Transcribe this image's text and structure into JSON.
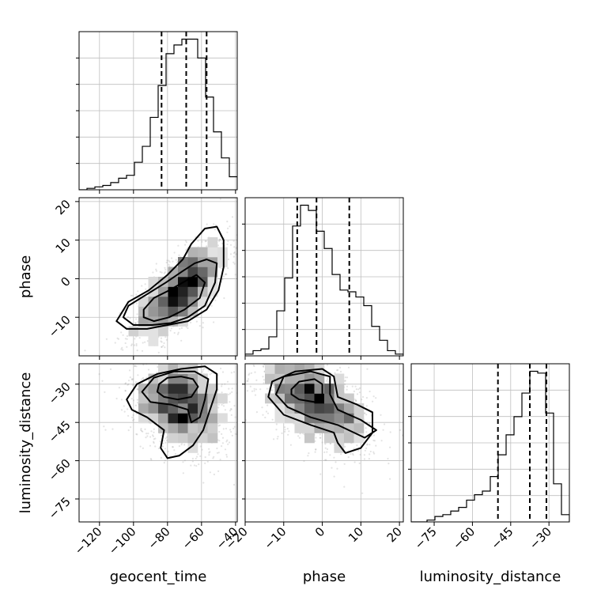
{
  "chart_data": {
    "type": "corner",
    "parameters": [
      "geocent_time",
      "phase",
      "luminosity_distance"
    ],
    "axis_labels": {
      "x": [
        "geocent_time",
        "phase",
        "luminosity_distance"
      ],
      "y": [
        "phase",
        "luminosity_distance"
      ]
    },
    "ranges": {
      "geocent_time": [
        -132,
        -39
      ],
      "phase": [
        -20,
        21
      ],
      "luminosity_distance": [
        -84,
        -22
      ]
    },
    "ticks": {
      "geocent_time": [
        -120,
        -100,
        -80,
        -60,
        -40
      ],
      "phase": [
        -20,
        -10,
        0,
        10,
        20
      ],
      "luminosity_distance": [
        -75,
        -60,
        -45,
        -30
      ]
    },
    "tick_labels": {
      "geocent_time": [
        "−120",
        "−100",
        "−80",
        "−60",
        "−40"
      ],
      "phase": [
        "−20",
        "−10",
        "0",
        "10",
        "20"
      ],
      "luminosity_distance": [
        "−75",
        "−60",
        "−45",
        "−30"
      ]
    },
    "y_tick_labels": {
      "phase": [
        "−10",
        "0",
        "10",
        "20"
      ],
      "luminosity_distance": [
        "−75",
        "−60",
        "−45",
        "−30"
      ]
    },
    "y_ticks": {
      "phase": [
        -10,
        0,
        10,
        20
      ],
      "luminosity_distance": [
        -75,
        -60,
        -45,
        -30
      ]
    },
    "quantiles": {
      "geocent_time": [
        -83.5,
        -69,
        -57
      ],
      "phase": [
        -6.5,
        -1.5,
        7
      ],
      "luminosity_distance": [
        -50,
        -37.5,
        -31
      ]
    },
    "histograms": {
      "geocent_time": {
        "edges": [
          -132,
          -127.35,
          -122.7,
          -118.05,
          -113.4,
          -108.75,
          -104.1,
          -99.45,
          -94.8,
          -90.15,
          -85.5,
          -80.85,
          -76.2,
          -71.55,
          -66.9,
          -62.25,
          -57.6,
          -52.95,
          -48.3,
          -43.65,
          -39
        ],
        "counts": [
          0,
          1,
          2,
          3,
          5,
          8,
          10,
          19,
          30,
          50,
          72,
          94,
          100,
          104,
          104,
          91,
          64,
          40,
          22,
          9
        ]
      },
      "phase": {
        "edges": [
          -20,
          -17.95,
          -15.9,
          -13.85,
          -11.8,
          -9.75,
          -7.7,
          -5.65,
          -3.6,
          -1.55,
          0.5,
          2.55,
          4.6,
          6.65,
          8.7,
          10.75,
          12.8,
          14.85,
          16.9,
          18.95,
          21
        ],
        "counts": [
          1,
          3,
          4,
          11,
          26,
          45,
          75,
          87,
          84,
          72,
          62,
          47,
          38,
          37,
          34,
          29,
          17,
          9,
          3,
          1
        ]
      },
      "luminosity_distance": {
        "edges": [
          -84,
          -80.9,
          -77.8,
          -74.7,
          -71.6,
          -68.5,
          -65.4,
          -62.3,
          -59.2,
          -56.1,
          -53,
          -49.9,
          -46.8,
          -43.7,
          -40.6,
          -37.5,
          -34.4,
          -31.3,
          -28.2,
          -25.1,
          -22
        ],
        "counts": [
          0,
          0,
          1,
          3,
          4,
          6,
          8,
          12,
          15,
          17,
          25,
          37,
          48,
          58,
          71,
          83,
          82,
          60,
          21,
          4
        ]
      }
    },
    "pairs": [
      {
        "x": "geocent_time",
        "y": "phase",
        "mean": [
          -72,
          -3
        ],
        "sd": [
          14,
          6.5
        ],
        "corr": 0.68,
        "contours": [
          [
            [
              -94,
              -10
            ],
            [
              -88,
              -11
            ],
            [
              -79,
              -10
            ],
            [
              -70,
              -8
            ],
            [
              -61,
              -5
            ],
            [
              -58,
              -1
            ],
            [
              -63,
              1
            ],
            [
              -71,
              -1
            ],
            [
              -79,
              -3
            ],
            [
              -88,
              -5
            ],
            [
              -94,
              -8
            ]
          ],
          [
            [
              -106,
              -10
            ],
            [
              -100,
              -12
            ],
            [
              -89,
              -12
            ],
            [
              -78,
              -11.5
            ],
            [
              -68,
              -10
            ],
            [
              -58,
              -7
            ],
            [
              -52,
              -1
            ],
            [
              -51,
              4
            ],
            [
              -57,
              5
            ],
            [
              -64,
              4
            ],
            [
              -71,
              2
            ],
            [
              -81,
              -1
            ],
            [
              -92,
              -4
            ],
            [
              -103,
              -7
            ]
          ],
          [
            [
              -110,
              -11
            ],
            [
              -104,
              -13
            ],
            [
              -92,
              -13
            ],
            [
              -80,
              -12
            ],
            [
              -68,
              -11
            ],
            [
              -57,
              -8
            ],
            [
              -50,
              -3
            ],
            [
              -47,
              3
            ],
            [
              -47,
              10
            ],
            [
              -51,
              13.5
            ],
            [
              -58,
              13
            ],
            [
              -66,
              9
            ],
            [
              -71,
              5
            ],
            [
              -80,
              1
            ],
            [
              -91,
              -3
            ],
            [
              -103,
              -6
            ]
          ]
        ]
      },
      {
        "x": "geocent_time",
        "y": "luminosity_distance",
        "mean": [
          -72,
          -38
        ],
        "sd": [
          15,
          9.5
        ],
        "corr": -0.25,
        "contours": [
          [
            [
              -85,
              -30
            ],
            [
              -80,
              -27.5
            ],
            [
              -72,
              -27
            ],
            [
              -65,
              -28
            ],
            [
              -62,
              -31
            ],
            [
              -66,
              -35
            ],
            [
              -74,
              -36
            ],
            [
              -82,
              -35
            ],
            [
              -86,
              -33
            ]
          ],
          [
            [
              -95,
              -33
            ],
            [
              -88,
              -27.5
            ],
            [
              -76,
              -25
            ],
            [
              -64,
              -25
            ],
            [
              -56,
              -28
            ],
            [
              -58,
              -36
            ],
            [
              -61,
              -43
            ],
            [
              -66,
              -45
            ],
            [
              -68,
              -40
            ],
            [
              -78,
              -38
            ],
            [
              -90,
              -37
            ]
          ],
          [
            [
              -104,
              -36
            ],
            [
              -98,
              -30
            ],
            [
              -86,
              -26
            ],
            [
              -72,
              -24
            ],
            [
              -58,
              -23
            ],
            [
              -51,
              -26
            ],
            [
              -51,
              -32
            ],
            [
              -55,
              -40
            ],
            [
              -59,
              -48
            ],
            [
              -65,
              -54
            ],
            [
              -73,
              -58
            ],
            [
              -80,
              -59
            ],
            [
              -84,
              -55
            ],
            [
              -82,
              -48
            ],
            [
              -92,
              -43
            ],
            [
              -101,
              -40
            ]
          ]
        ]
      },
      {
        "x": "phase",
        "y": "luminosity_distance",
        "mean": [
          -2,
          -37
        ],
        "sd": [
          7.5,
          9.5
        ],
        "corr": -0.55,
        "contours": [
          [
            [
              -8,
              -32
            ],
            [
              -6,
              -29
            ],
            [
              -2,
              -28
            ],
            [
              0,
              -30
            ],
            [
              0,
              -34
            ],
            [
              -2,
              -37
            ],
            [
              -6,
              -36
            ],
            [
              -8,
              -34
            ]
          ],
          [
            [
              -12,
              -34
            ],
            [
              -10,
              -27
            ],
            [
              -3,
              -25
            ],
            [
              2,
              -27
            ],
            [
              2,
              -34
            ],
            [
              4,
              -40
            ],
            [
              10,
              -44
            ],
            [
              14,
              -48
            ],
            [
              11,
              -51
            ],
            [
              4,
              -46
            ],
            [
              -3,
              -43
            ],
            [
              -9,
              -39
            ]
          ],
          [
            [
              -14,
              -35
            ],
            [
              -13,
              -29
            ],
            [
              -7,
              -25
            ],
            [
              0,
              -24
            ],
            [
              3,
              -27
            ],
            [
              4,
              -35
            ],
            [
              9,
              -38
            ],
            [
              13,
              -41
            ],
            [
              13,
              -49
            ],
            [
              10,
              -55
            ],
            [
              6,
              -57
            ],
            [
              4,
              -53
            ],
            [
              3,
              -49
            ],
            [
              -3,
              -46
            ],
            [
              -10,
              -42
            ]
          ]
        ]
      }
    ]
  }
}
